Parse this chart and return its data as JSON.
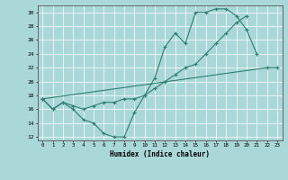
{
  "xlabel": "Humidex (Indice chaleur)",
  "xlim": [
    -0.5,
    23.5
  ],
  "ylim": [
    11.5,
    31
  ],
  "yticks": [
    12,
    14,
    16,
    18,
    20,
    22,
    24,
    26,
    28,
    30
  ],
  "xticks": [
    0,
    1,
    2,
    3,
    4,
    5,
    6,
    7,
    8,
    9,
    10,
    11,
    12,
    13,
    14,
    15,
    16,
    17,
    18,
    19,
    20,
    21,
    22,
    23
  ],
  "line1_x": [
    0,
    1,
    2,
    3,
    4,
    5,
    6,
    7,
    8,
    9,
    10,
    11,
    12,
    13,
    14,
    15,
    16,
    17,
    18,
    19,
    20,
    21
  ],
  "line1_y": [
    17.5,
    16.0,
    17.0,
    16.0,
    14.5,
    14.0,
    12.5,
    12.0,
    12.0,
    15.5,
    18.0,
    20.5,
    25.0,
    27.0,
    25.5,
    30.0,
    30.0,
    30.5,
    30.5,
    29.5,
    27.5,
    24.0
  ],
  "line2_x": [
    0,
    1,
    2,
    3,
    4,
    5,
    6,
    7,
    8,
    9,
    10,
    11,
    12,
    13,
    14,
    15,
    16,
    17,
    18,
    19,
    20
  ],
  "line2_y": [
    17.5,
    16.0,
    17.0,
    16.5,
    16.0,
    16.5,
    17.0,
    17.0,
    17.5,
    17.5,
    18.0,
    19.0,
    20.0,
    21.0,
    22.0,
    22.5,
    24.0,
    25.5,
    27.0,
    28.5,
    29.5
  ],
  "line3_x": [
    0,
    22,
    23
  ],
  "line3_y": [
    17.5,
    22.0,
    22.0
  ],
  "color": "#2e7d6e",
  "bg_color": "#aad8d8",
  "grid_color": "#ffffff"
}
